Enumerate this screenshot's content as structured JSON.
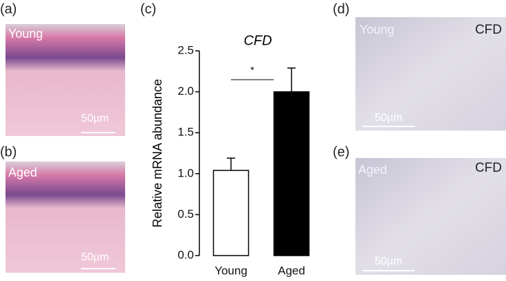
{
  "chart_data": {
    "type": "bar",
    "title": "CFD",
    "y_label": "Relative mRNA abundance",
    "categories": [
      "Young",
      "Aged"
    ],
    "values": [
      1.04,
      2.0
    ],
    "errors": [
      0.15,
      0.29
    ],
    "colors": [
      "#ffffff",
      "#000000"
    ],
    "annotation": "*",
    "ylim": [
      0,
      2.5
    ],
    "yticks": [
      {
        "value": 0,
        "label": "0.0"
      },
      0.5,
      {
        "value": 1,
        "label": "1.0"
      },
      1.5,
      {
        "value": 2,
        "label": "2.0"
      },
      2.5
    ]
  },
  "panels": [
    {
      "label": "(a)",
      "tag": "Young",
      "scale": "50µm"
    },
    {
      "label": "(b)",
      "tag": "Aged",
      "scale": "50µm"
    },
    {
      "label": "(c)"
    },
    {
      "label": "(d)",
      "tag": "Young",
      "stain": "CFD",
      "scale": "50µm"
    },
    {
      "label": "(e)",
      "tag": "Aged",
      "stain": "CFD",
      "scale": "50µm"
    }
  ]
}
